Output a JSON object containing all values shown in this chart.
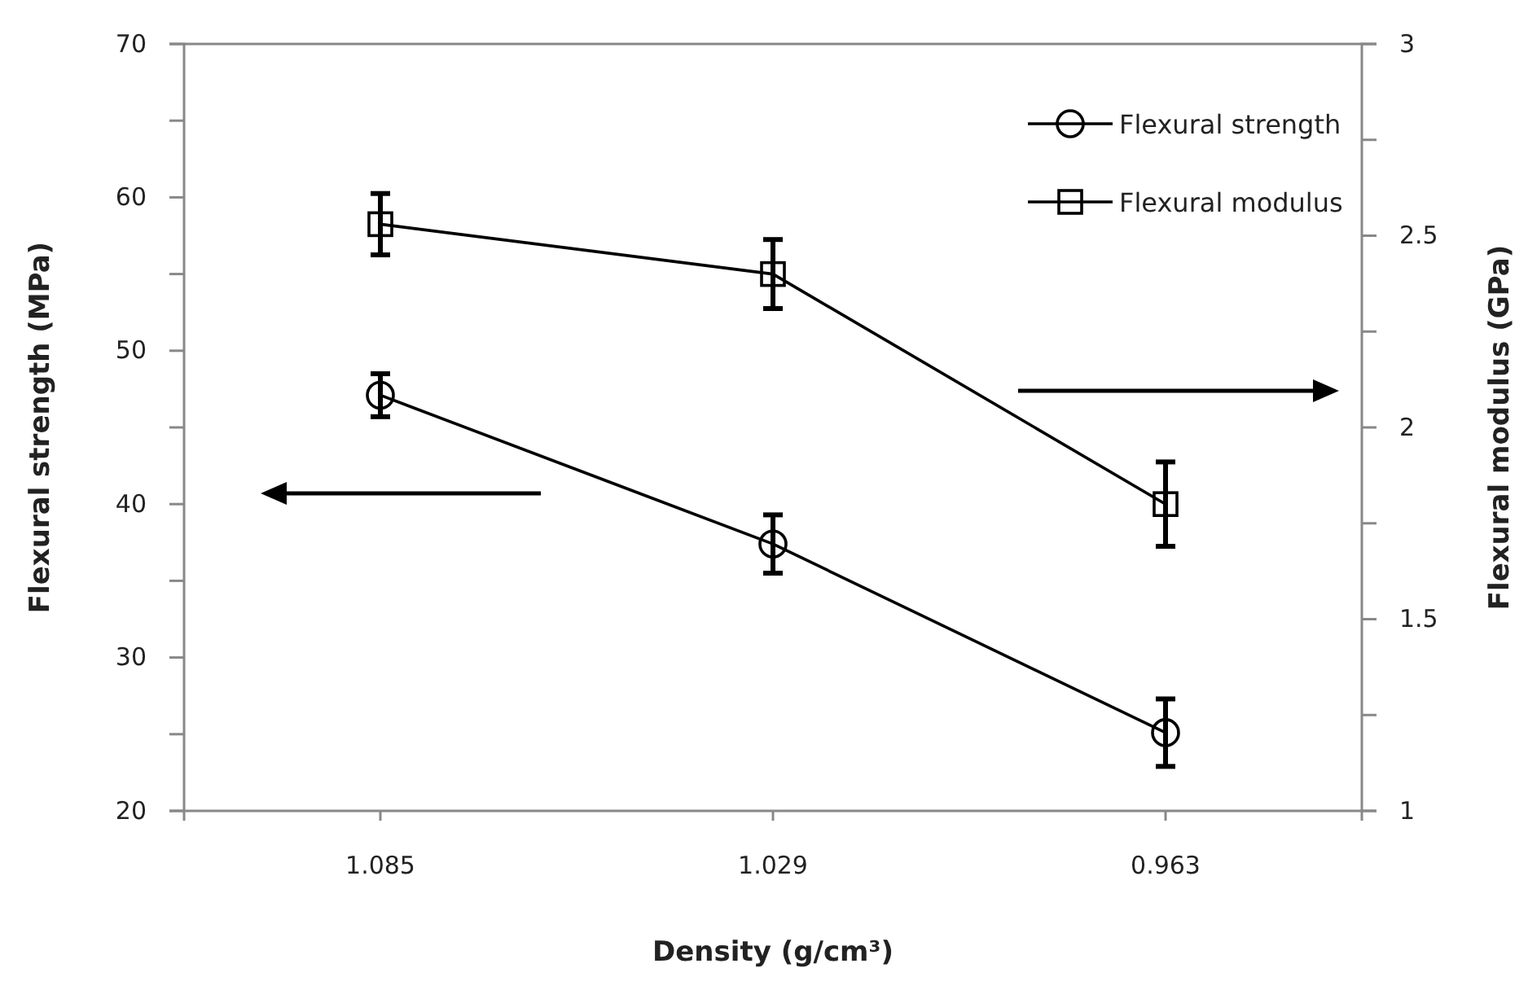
{
  "chart_data": {
    "type": "line",
    "xlabel": "Density (g/cm³)",
    "ylabel": "Flexural strength (MPa)",
    "y2label": "Flexural modulus (GPa)",
    "categories": [
      "1.085",
      "1.029",
      "0.963"
    ],
    "series": [
      {
        "name": "Flexural strength",
        "color": "#000000",
        "marker": "circle",
        "values": [
          47.1,
          37.4,
          25.1
        ],
        "errors": [
          1.4,
          1.9,
          2.2
        ]
      },
      {
        "name": "Flexural modulus",
        "color": "#000000",
        "marker": "square",
        "axis": "y2",
        "values": [
          2.53,
          2.4,
          1.8
        ],
        "errors": [
          0.08,
          0.09,
          0.11
        ]
      }
    ],
    "ylim": [
      20,
      70
    ],
    "yticks": [
      20,
      {
        "value": 25,
        "label": null
      },
      30,
      {
        "value": 35,
        "label": null
      },
      40,
      {
        "value": 45,
        "label": null
      },
      50,
      {
        "value": 55,
        "label": null
      },
      60,
      {
        "value": 65,
        "label": null
      },
      70
    ],
    "y2lim": [
      1,
      3
    ],
    "y2ticks": [
      1,
      {
        "value": 1.25,
        "label": null
      },
      1.5,
      {
        "value": 1.75,
        "label": null
      },
      2,
      {
        "value": 2.25,
        "label": null
      },
      2.5,
      {
        "value": 2.75,
        "label": null
      },
      3
    ],
    "legend": "top right",
    "grid": false,
    "line_style": "solid"
  }
}
